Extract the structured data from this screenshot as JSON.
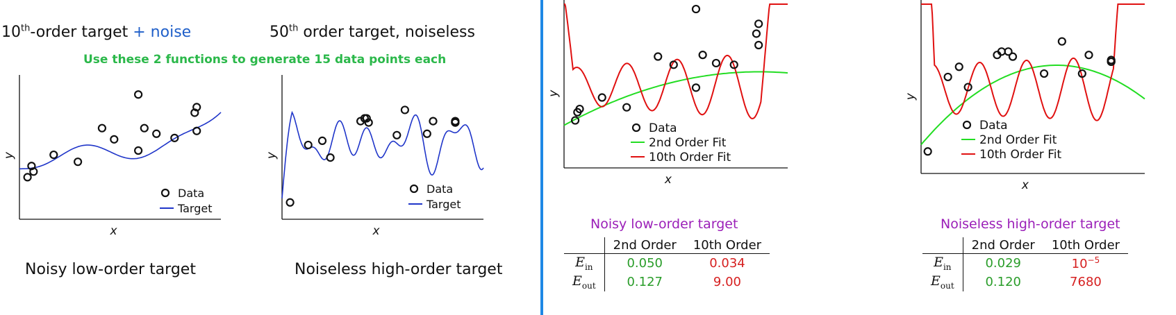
{
  "left": {
    "title1_base": "10",
    "title1_sup": "th",
    "title1_rest": "-order target",
    "title1_plus": "+ noise",
    "title2_base": "50",
    "title2_sup": "th",
    "title2_rest": " order target, noiseless",
    "instruction": "Use these 2 functions to generate 15 data points each",
    "caption1": "Noisy low-order target",
    "caption2": "Noiseless high-order target"
  },
  "colors": {
    "target": "#1f35c9",
    "data": "#111111",
    "fit2": "#22dd22",
    "fit10": "#e01010",
    "accent_divider": "#1e88e5",
    "title_purple": "#9b1fb8"
  },
  "chart_data": [
    {
      "type": "scatter",
      "title": "",
      "xlabel": "x",
      "ylabel": "y",
      "legend": [
        "Data",
        "Target"
      ],
      "legend_position": "bottom-right",
      "series": [
        {
          "name": "Data",
          "points": [
            [
              0.04,
              0.3
            ],
            [
              0.06,
              0.38
            ],
            [
              0.07,
              0.34
            ],
            [
              0.17,
              0.46
            ],
            [
              0.29,
              0.41
            ],
            [
              0.41,
              0.65
            ],
            [
              0.47,
              0.57
            ],
            [
              0.59,
              0.89
            ],
            [
              0.59,
              0.49
            ],
            [
              0.62,
              0.65
            ],
            [
              0.68,
              0.61
            ],
            [
              0.77,
              0.58
            ],
            [
              0.87,
              0.76
            ],
            [
              0.88,
              0.8
            ],
            [
              0.88,
              0.63
            ]
          ]
        },
        {
          "name": "Target",
          "curve": [
            [
              0,
              0.35
            ],
            [
              0.08,
              0.38
            ],
            [
              0.2,
              0.45
            ],
            [
              0.3,
              0.49
            ],
            [
              0.4,
              0.44
            ],
            [
              0.47,
              0.45
            ],
            [
              0.55,
              0.56
            ],
            [
              0.62,
              0.69
            ],
            [
              0.69,
              0.64
            ],
            [
              0.74,
              0.58
            ],
            [
              0.8,
              0.66
            ],
            [
              0.9,
              0.79
            ],
            [
              0.96,
              0.75
            ]
          ]
        }
      ]
    },
    {
      "type": "scatter",
      "title": "",
      "xlabel": "x",
      "ylabel": "y",
      "legend": [
        "Data",
        "Target"
      ],
      "legend_position": "bottom-right",
      "series": [
        {
          "name": "Data",
          "points": [
            [
              0.04,
              0.12
            ],
            [
              0.13,
              0.53
            ],
            [
              0.2,
              0.56
            ],
            [
              0.24,
              0.44
            ],
            [
              0.39,
              0.7
            ],
            [
              0.41,
              0.72
            ],
            [
              0.42,
              0.72
            ],
            [
              0.43,
              0.69
            ],
            [
              0.57,
              0.6
            ],
            [
              0.61,
              0.78
            ],
            [
              0.72,
              0.61
            ],
            [
              0.75,
              0.7
            ],
            [
              0.86,
              0.69
            ],
            [
              0.86,
              0.7
            ],
            [
              0.86,
              0.69
            ]
          ]
        }
      ]
    },
    {
      "type": "scatter",
      "title": "Noisy low-order target",
      "xlabel": "x",
      "ylabel": "y",
      "legend": [
        "Data",
        "2nd Order Fit",
        "10th Order Fit"
      ],
      "legend_position": "bottom-right",
      "series": [
        {
          "name": "Data",
          "points": [
            [
              0.05,
              0.29
            ],
            [
              0.06,
              0.34
            ],
            [
              0.07,
              0.36
            ],
            [
              0.17,
              0.43
            ],
            [
              0.28,
              0.37
            ],
            [
              0.42,
              0.68
            ],
            [
              0.49,
              0.63
            ],
            [
              0.59,
              0.49
            ],
            [
              0.59,
              0.97
            ],
            [
              0.62,
              0.69
            ],
            [
              0.68,
              0.64
            ],
            [
              0.76,
              0.63
            ],
            [
              0.86,
              0.82
            ],
            [
              0.87,
              0.75
            ],
            [
              0.87,
              0.88
            ]
          ]
        }
      ]
    },
    {
      "type": "scatter",
      "title": "Noiseless high-order target",
      "xlabel": "x",
      "ylabel": "y",
      "legend": [
        "Data",
        "2nd Order Fit",
        "10th Order Fit"
      ],
      "legend_position": "bottom-right",
      "series": [
        {
          "name": "Data",
          "points": [
            [
              0.03,
              0.13
            ],
            [
              0.12,
              0.57
            ],
            [
              0.17,
              0.63
            ],
            [
              0.21,
              0.51
            ],
            [
              0.34,
              0.7
            ],
            [
              0.36,
              0.72
            ],
            [
              0.39,
              0.72
            ],
            [
              0.41,
              0.69
            ],
            [
              0.55,
              0.59
            ],
            [
              0.63,
              0.78
            ],
            [
              0.72,
              0.59
            ],
            [
              0.75,
              0.7
            ],
            [
              0.85,
              0.66
            ],
            [
              0.85,
              0.67
            ],
            [
              0.85,
              0.66
            ]
          ]
        }
      ]
    }
  ],
  "tables": [
    {
      "title": "Noisy low-order target",
      "cols": [
        "2nd Order",
        "10th Order"
      ],
      "rows": [
        {
          "label": "E",
          "sub": "in",
          "v2": "0.050",
          "v10": "0.034"
        },
        {
          "label": "E",
          "sub": "out",
          "v2": "0.127",
          "v10": "9.00"
        }
      ]
    },
    {
      "title": "Noiseless high-order target",
      "cols": [
        "2nd Order",
        "10th Order"
      ],
      "rows": [
        {
          "label": "E",
          "sub": "in",
          "v2": "0.029",
          "v10_base": "10",
          "v10_sup": "−5"
        },
        {
          "label": "E",
          "sub": "out",
          "v2": "0.120",
          "v10": "7680"
        }
      ]
    }
  ],
  "legend_labels": {
    "data": "Data",
    "target": "Target",
    "fit2": "2nd Order Fit",
    "fit10": "10th Order Fit"
  },
  "axis": {
    "x": "x",
    "y": "y"
  }
}
